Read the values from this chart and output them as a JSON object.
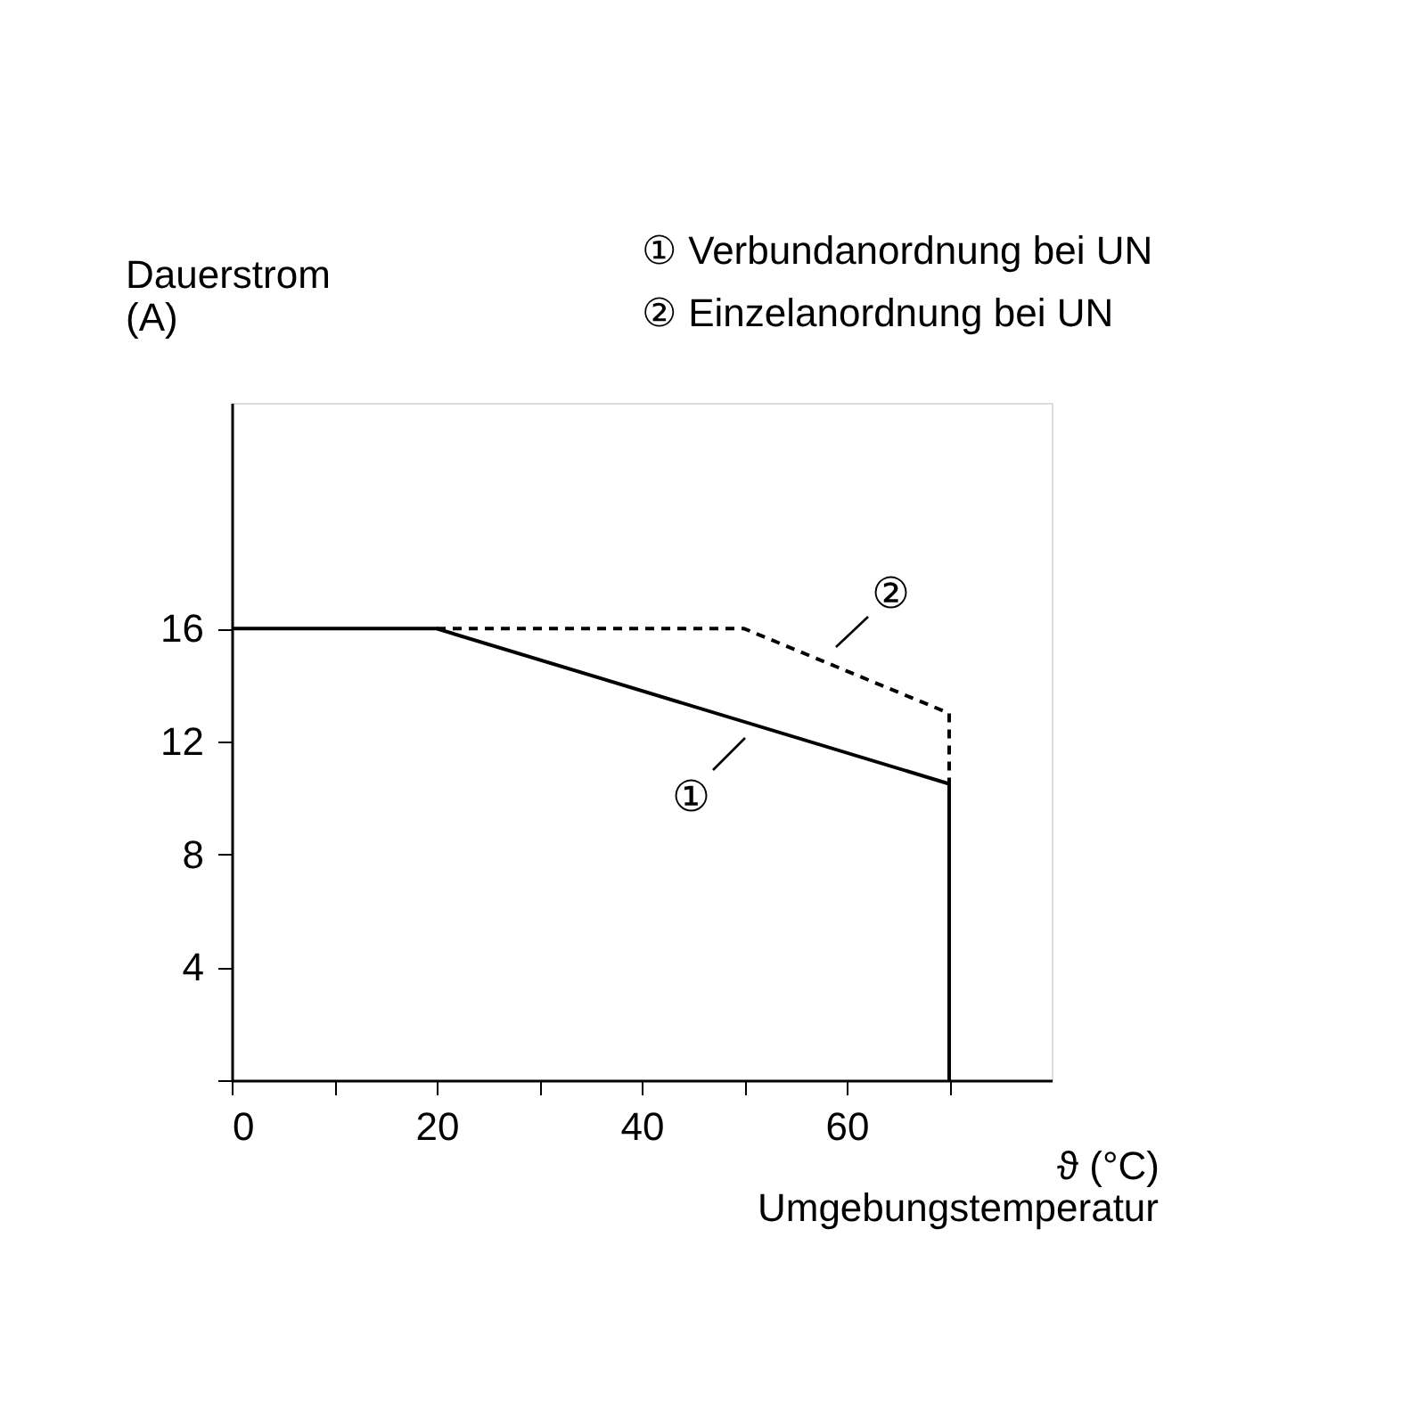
{
  "chart_data": {
    "type": "line",
    "ylabel": "Dauerstrom (A)",
    "xlabel": "ϑ (°C)",
    "series": [
      {
        "color": "#000000",
        "line_style": "solid",
        "x": [
          0,
          20,
          70,
          70
        ],
        "values": [
          16,
          16,
          10.5,
          0
        ]
      },
      {
        "color": "#000000",
        "line_style": "dashed",
        "x": [
          20,
          50,
          70,
          70
        ],
        "values": [
          16,
          16,
          13,
          10.5
        ]
      }
    ],
    "xlim": [
      0,
      80
    ],
    "xticks": [
      0,
      {
        "value": 10,
        "label": null
      },
      20,
      {
        "value": 30,
        "label": null
      },
      40,
      {
        "value": 50,
        "label": null
      },
      60,
      {
        "value": 70,
        "label": null
      }
    ],
    "ylim": [
      0,
      24
    ],
    "yticks": [
      {
        "value": 0,
        "label": null
      },
      4,
      8,
      12,
      16
    ],
    "grid": false,
    "marker": "none",
    "annotations": [
      "① Verbundanordnung bei UN",
      "② Einzelanordnung bei UN",
      "Umgebungstemperatur",
      "①",
      "②"
    ]
  }
}
